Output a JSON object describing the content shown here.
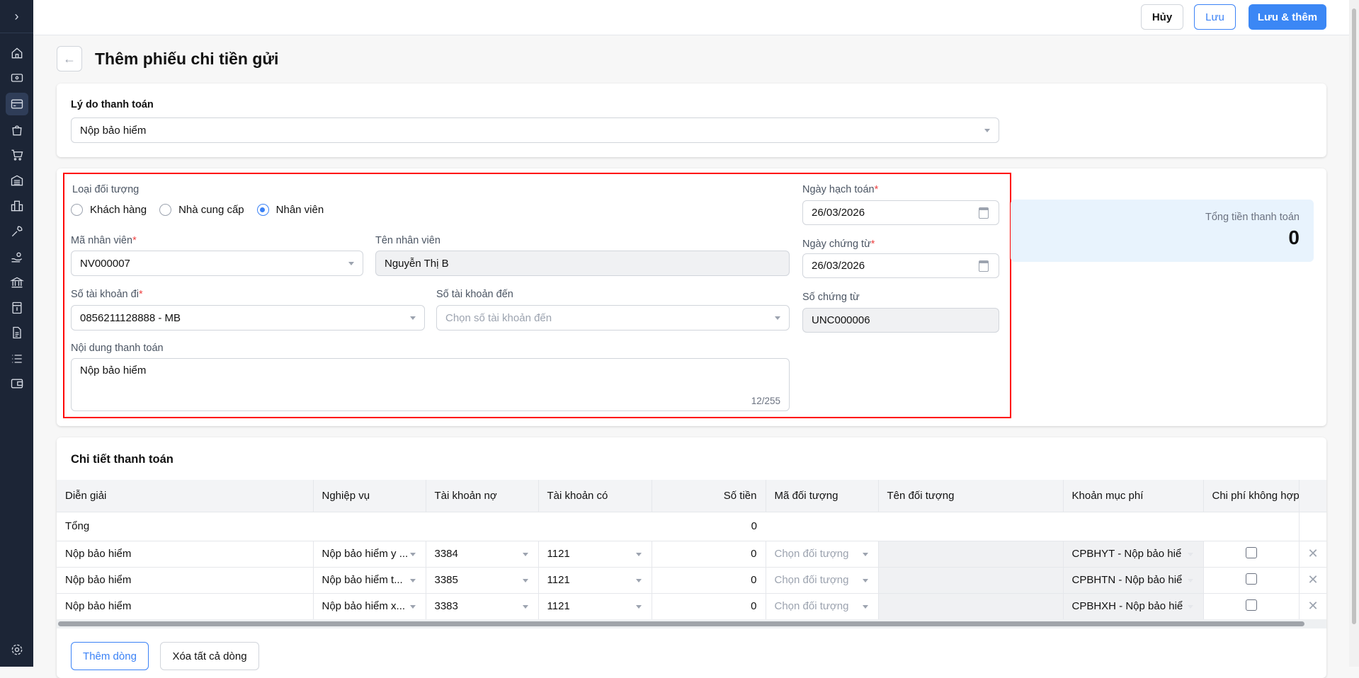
{
  "topbar": {
    "cancel": "Hủy",
    "save": "Lưu",
    "save_add": "Lưu & thêm"
  },
  "sidebar": {
    "icons": [
      "home-icon",
      "cash-icon",
      "card-icon",
      "bag-icon",
      "cart-icon",
      "warehouse-icon",
      "building-icon",
      "tools-icon",
      "hand-coins-icon",
      "bank-icon",
      "invoice-icon",
      "document-icon",
      "list-icon",
      "wallet-icon"
    ],
    "active": "card-icon"
  },
  "page": {
    "title": "Thêm phiếu chi tiền gửi"
  },
  "reason": {
    "label": "Lý do thanh toán",
    "value": "Nộp bảo hiểm"
  },
  "form": {
    "object_type_label": "Loại đối tượng",
    "object_types": [
      "Khách hàng",
      "Nhà cung cấp",
      "Nhân viên"
    ],
    "selected_type": "Nhân viên",
    "employee_code_label": "Mã nhân viên",
    "employee_code": "NV000007",
    "employee_name_label": "Tên nhân viên",
    "employee_name": "Nguyễn Thị B",
    "from_account_label": "Số tài khoản đi",
    "from_account": "0856211128888 - MB",
    "to_account_label": "Số tài khoản đến",
    "to_account_placeholder": "Chọn số tài khoản đến",
    "content_label": "Nội dung thanh toán",
    "content": "Nộp bảo hiểm",
    "content_counter": "12/255",
    "posting_date_label": "Ngày hạch toán",
    "posting_date": "26/03/2026",
    "voucher_date_label": "Ngày chứng từ",
    "voucher_date": "26/03/2026",
    "voucher_no_label": "Số chứng từ",
    "voucher_no": "UNC000006",
    "required_mark": "*"
  },
  "summary": {
    "label": "Tổng tiền thanh toán",
    "value": "0"
  },
  "details": {
    "title": "Chi tiết thanh toán",
    "columns": [
      "Diễn giải",
      "Nghiệp vụ",
      "Tài khoản nợ",
      "Tài khoản có",
      "Số tiền",
      "Mã đối tượng",
      "Tên đối tượng",
      "Khoản mục phí",
      "Chi phí không hợp"
    ],
    "total_label": "Tổng",
    "total_amount": "0",
    "rows": [
      {
        "desc": "Nộp bảo hiểm",
        "op": "Nộp bảo hiểm y ...",
        "debit": "3384",
        "credit": "1121",
        "amount": "0",
        "obj_placeholder": "Chọn đối tượng",
        "obj_name": "",
        "fee": "CPBHYT - Nộp bảo hiể",
        "invalid": false
      },
      {
        "desc": "Nộp bảo hiểm",
        "op": "Nộp bảo hiểm t...",
        "debit": "3385",
        "credit": "1121",
        "amount": "0",
        "obj_placeholder": "Chọn đối tượng",
        "obj_name": "",
        "fee": "CPBHTN - Nộp bảo hiể",
        "invalid": false
      },
      {
        "desc": "Nộp bảo hiểm",
        "op": "Nộp bảo hiểm x...",
        "debit": "3383",
        "credit": "1121",
        "amount": "0",
        "obj_placeholder": "Chọn đối tượng",
        "obj_name": "",
        "fee": "CPBHXH - Nộp bảo hiể",
        "invalid": false
      }
    ],
    "add_row": "Thêm dòng",
    "clear_rows": "Xóa tất cả dòng"
  },
  "colors": {
    "primary": "#3b87f5",
    "sidebar": "#1c2536",
    "highlight": "#ff0000",
    "summary_bg": "#e8f3fd"
  }
}
